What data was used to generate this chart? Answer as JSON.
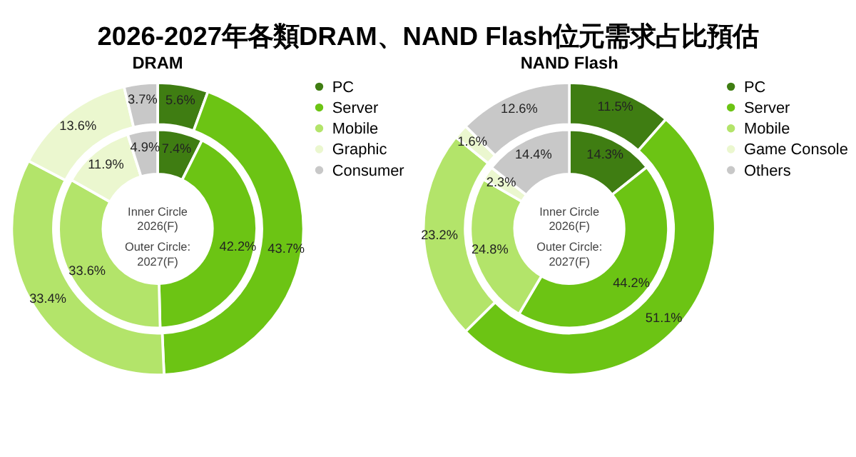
{
  "chart_data": [
    {
      "type": "other",
      "title": "2026-2027年各類DRAM、NAND Flash位元需求占比預估"
    },
    {
      "type": "donut",
      "title": "DRAM",
      "categories": [
        "PC",
        "Server",
        "Mobile",
        "Graphic",
        "Consumer"
      ],
      "colors": [
        "#3f7d12",
        "#6cc414",
        "#b3e46a",
        "#ebf7cf",
        "#c8c8c8"
      ],
      "legend": "top right",
      "annotations": [
        "Inner Circle\n2026(F)",
        "Outer Circle:\n2027(F)"
      ],
      "series": [
        {
          "values": [
            7.4,
            42.2,
            33.6,
            11.9,
            4.9
          ],
          "value_labels": [
            "7.4%",
            "42.2%",
            "33.6%",
            "11.9%",
            "4.9%"
          ]
        },
        {
          "values": [
            5.6,
            43.7,
            33.4,
            13.6,
            3.7
          ],
          "value_labels": [
            "5.6%",
            "43.7%",
            "33.4%",
            "13.6%",
            "3.7%"
          ]
        }
      ]
    },
    {
      "type": "donut",
      "title": "NAND Flash",
      "categories": [
        "PC",
        "Server",
        "Mobile",
        "Game Console",
        "Others"
      ],
      "colors": [
        "#3f7d12",
        "#6cc414",
        "#b3e46a",
        "#ebf7cf",
        "#c8c8c8"
      ],
      "legend": "top right",
      "annotations": [
        "Inner Circle\n2026(F)",
        "Outer Circle:\n2027(F)"
      ],
      "series": [
        {
          "values": [
            14.3,
            44.2,
            24.8,
            2.3,
            14.4
          ],
          "value_labels": [
            "14.3%",
            "44.2%",
            "24.8%",
            "2.3%",
            "14.4%"
          ]
        },
        {
          "values": [
            11.5,
            51.1,
            23.2,
            1.6,
            12.6
          ],
          "value_labels": [
            "11.5%",
            "51.1%",
            "23.2%",
            "1.6%",
            "12.6%"
          ]
        }
      ]
    }
  ]
}
